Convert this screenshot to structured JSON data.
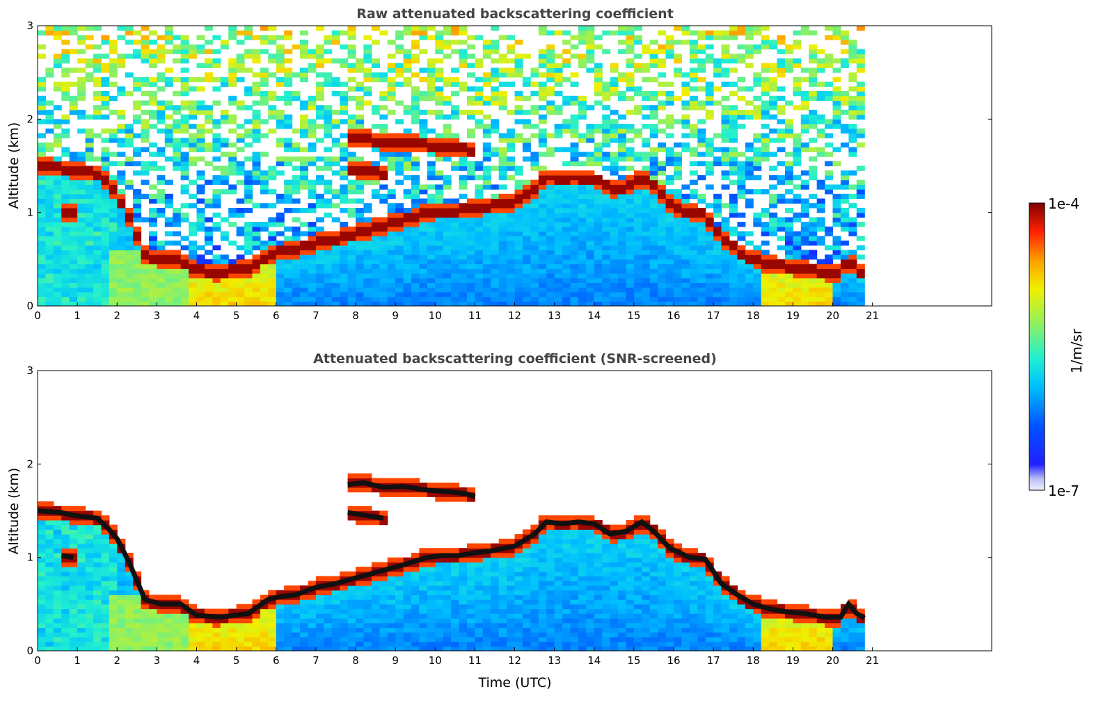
{
  "chart_data": [
    {
      "type": "heatmap",
      "title": "Raw attenuated backscattering coefficient",
      "xlabel": "",
      "ylabel": "Altitude (km)",
      "xlim": [
        0,
        24
      ],
      "ylim": [
        0,
        3
      ],
      "data_extent_hours": 20.8,
      "x_ticks": [
        "0",
        "1",
        "2",
        "3",
        "4",
        "5",
        "6",
        "7",
        "8",
        "9",
        "10",
        "11",
        "12",
        "13",
        "14",
        "15",
        "16",
        "17",
        "18",
        "19",
        "20",
        "21"
      ],
      "y_ticks": [
        "0",
        "1",
        "2",
        "3"
      ],
      "grid": false,
      "screened": false,
      "layers": [
        {
          "label": "cloud-base",
          "x": [
            0,
            0.6,
            0.9,
            1.5,
            1.8,
            2.0,
            2.3,
            2.7,
            3.1,
            3.6,
            4.0,
            4.6,
            5.3,
            5.8,
            6.1,
            6.5,
            7.0,
            7.5,
            8.0,
            8.6,
            9.2,
            9.8,
            10.2,
            10.6,
            11.0,
            11.4,
            12.0,
            12.5,
            12.8,
            13.2,
            13.6,
            14.0,
            14.4,
            14.8,
            15.2,
            15.5,
            15.9,
            16.4,
            16.8,
            17.2,
            17.6,
            18.0,
            18.4,
            18.8,
            19.3,
            19.8,
            20.2,
            20.4,
            20.6,
            20.8
          ],
          "y": [
            1.5,
            1.48,
            1.45,
            1.42,
            1.3,
            1.2,
            0.95,
            0.55,
            0.5,
            0.5,
            0.38,
            0.36,
            0.4,
            0.55,
            0.58,
            0.6,
            0.68,
            0.72,
            0.78,
            0.85,
            0.92,
            1.0,
            1.02,
            1.02,
            1.05,
            1.07,
            1.12,
            1.25,
            1.38,
            1.36,
            1.38,
            1.36,
            1.25,
            1.28,
            1.38,
            1.28,
            1.1,
            1.0,
            0.98,
            0.72,
            0.6,
            0.5,
            0.45,
            0.42,
            0.4,
            0.36,
            0.36,
            0.5,
            0.4,
            0.35
          ]
        },
        {
          "label": "cloud-upper-1",
          "x": [
            7.8,
            8.2,
            8.7,
            9.2,
            9.8,
            10.4,
            10.8,
            11.0
          ],
          "y": [
            1.78,
            1.8,
            1.75,
            1.76,
            1.72,
            1.7,
            1.68,
            1.65
          ]
        },
        {
          "label": "cloud-upper-2",
          "x": [
            7.8,
            8.1,
            8.4,
            8.7
          ],
          "y": [
            1.48,
            1.46,
            1.44,
            1.42
          ]
        },
        {
          "label": "cloud-early",
          "x": [
            0.6,
            0.9
          ],
          "y": [
            1.02,
            1.0
          ]
        }
      ]
    },
    {
      "type": "heatmap",
      "title": "Attenuated backscattering coefficient (SNR-screened)",
      "xlabel": "Time (UTC)",
      "ylabel": "Altitude (km)",
      "xlim": [
        0,
        24
      ],
      "ylim": [
        0,
        3
      ],
      "data_extent_hours": 20.8,
      "x_ticks": [
        "0",
        "1",
        "2",
        "3",
        "4",
        "5",
        "6",
        "7",
        "8",
        "9",
        "10",
        "11",
        "12",
        "13",
        "14",
        "15",
        "16",
        "17",
        "18",
        "19",
        "20",
        "21"
      ],
      "y_ticks": [
        "0",
        "1",
        "2",
        "3"
      ],
      "grid": false,
      "screened": true
    }
  ],
  "colorbar": {
    "label": "1/m/sr",
    "max_label": "1e-4",
    "min_label": "1e-7",
    "colormap": "jet",
    "scale": "log",
    "range": [
      1e-07,
      0.0001
    ]
  }
}
